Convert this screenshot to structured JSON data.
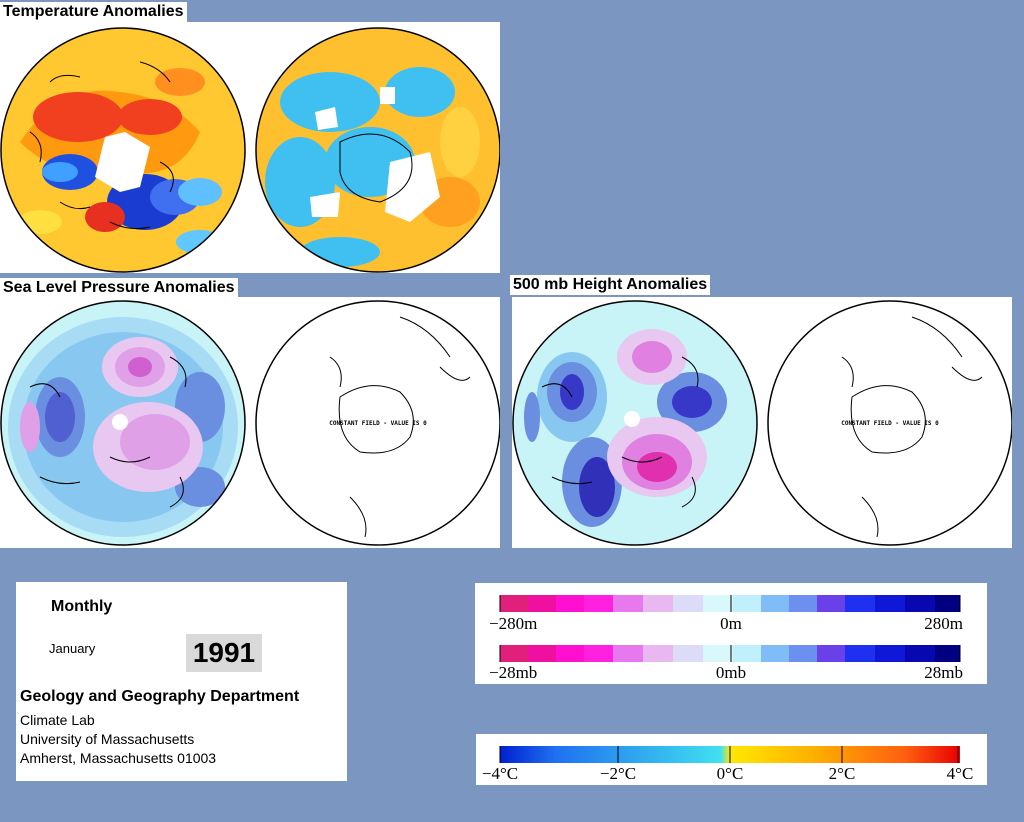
{
  "panels": {
    "temperature": {
      "title": "Temperature Anomalies"
    },
    "slp": {
      "title": "Sea Level Pressure Anomalies",
      "south_note": "CONSTANT FIELD - VALUE IS 0"
    },
    "height500": {
      "title": "500 mb Height Anomalies",
      "south_note": "CONSTANT FIELD - VALUE IS 0"
    }
  },
  "info": {
    "period": "Monthly",
    "month": "January",
    "year": "1991",
    "department": "Geology and Geography Department",
    "lab": "Climate Lab",
    "university": "University of Massachusetts",
    "address": "Amherst, Massachusetts 01003"
  },
  "legends": {
    "height_scale": {
      "left": "−280m",
      "center": "0m",
      "right": "280m"
    },
    "pressure_scale": {
      "left": "−28mb",
      "center": "0mb",
      "right": "28mb"
    },
    "temperature_scale": {
      "t1": "−4°C",
      "t2": "−2°C",
      "t3": "0°C",
      "t4": "2°C",
      "t5": "4°C"
    }
  },
  "colors": {
    "background": "#7b96c0",
    "anomaly_warm": "#e8202a",
    "anomaly_cold": "#1e3cd6",
    "pressure_high": "#e040c0",
    "pressure_low": "#3030c8",
    "neutral": "#c8f4f8"
  }
}
